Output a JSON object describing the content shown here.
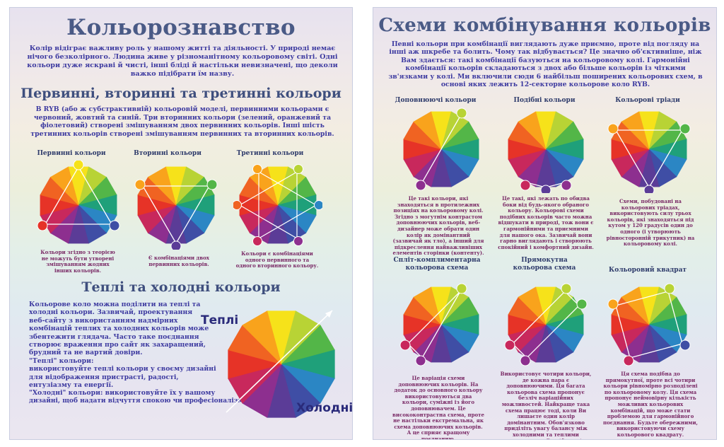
{
  "left": {
    "title": "Кольорознавство",
    "intro": "Колір відіграє важливу роль у нашому житті та діяльності. У природі немає нічого безколірного. Людина живе у різноманітному кольоровому світі. Одні кольори дуже яскраві й чисті, інші бліді й настільки невизначені, що деколи важко підібрати їм назву.",
    "section1_title": "Первинні, вторинні та третинні кольори",
    "section1_text": "В RYB (або ж субстрактивній) кольоровій моделі, первинними кольорами є червоний, жовтий та синій. Три вторинних кольори (зелений, оранжевий та фіолетовий) створені змішуванням двох первинних кольорів. Інші шість третинних кольорів створені змішуванням первинних та вторинних кольорів.",
    "wheels": [
      {
        "title": "Первинні кольори",
        "caption": "Кольори згідно з теорією не можуть бути утворені змішуванням жодних інших кольорів."
      },
      {
        "title": "Вторинні кольори",
        "caption": "Є комбінаціями двох первинних кольорів."
      },
      {
        "title": "Третинні кольори",
        "caption": "Кольори є комбінаціями одного первинного та одного вторинного кольору."
      }
    ],
    "section2_title": "Теплі та холодні кольори",
    "warm_label": "Теплі",
    "cold_label": "Холодні",
    "section2_lines": [
      "Кольорове коло можна поділити на теплі та",
      "холодні кольори. Зазвичай, проектування",
      "веб-сайту з використанням надмірних",
      "комбінацій теплих та холодних кольорів може",
      "збентежити глядача. Часто таке поєднання",
      "створює враження про сайт як захаращений,",
      "брудний та не вартий довіри.",
      "\"Теплі\" кольори:",
      "використовуйте теплі кольори у своєму дизайні",
      "для відображення пристрасті, радості,",
      "ентузіазму та енергії.",
      "\"Холодні\" кольори: використовуйте їх у вашому",
      "дизайні, щоб надати відчуття спокою чи професіоналізму."
    ]
  },
  "right": {
    "title": "Схеми комбінування кольорів",
    "intro": "Певні кольори при комбінації виглядають дуже приємно, проте від погляду на інші аж шкребе та болить. Чому так відбувається? Це значно об'єктивніше, ніж Вам здається: такі комбінації базуються на кольоровому колі. Гармонійні комбінації кольорів складаються з двох або більше кольорів із чіткими зв'язками у колі. Ми включили сюди 6 найбільш поширених кольорових схем, в основі яких лежить 12-секторне кольорове коло RYB.",
    "schemes": [
      {
        "title": "Доповнюючі кольори",
        "caption": "Це такі кольори, які знаходяться в протилежних позиціях на кольоровому колі. Згідно з могутнім контрастом доповнюючих кольорів, веб-дизайнер може обрати один колір як домінантний (зазвичай як тло), а інший для підкреслення найважливіших елементів сторінки (контенту)."
      },
      {
        "title": "Подібні кольори",
        "caption": "Це такі, які лежать по обидва боки від будь-якого обраного кольору. Кольорові схеми подібних кольорів часто можна відшукати в природі, тож вони є гармонійними та приємними для нашого ока. Зазвичай вони гарно виглядають і створюють спокійний і комфортний дизайн."
      },
      {
        "title": "Кольорові тріади",
        "caption": "Схеми, побудовані на кольорових тріадах, використовують силу трьох кольорів, які знаходяться під кутом у 120 градусів один до одного (і утворюють рівносторонній трикутник) на кольоровому колі."
      },
      {
        "title": "Спліт-комплиментарна кольорова схема",
        "caption": "Це варіація схеми доповнюючих кольорів. На додаток до основного кольору використовуються два кольори, суміжні із його доповнювачем. Це висококонтрастна схема, проте не настільки екстремальна, як схема доповнюючих кольорів. А це сприяє кращому поєднанню."
      },
      {
        "title": "Прямокутна кольорова схема",
        "caption": "Використовує чотири кольори, де кожна пара є доповнюючими. Ця багата кольорова схема пропонує безліч варіаційних можливостей. Найкраще така схема працює тоді, коли Ви лишаєте один колір домінантним. Обов'язково приділіть увагу балансу між холодними та теплими кольорами у Вашій схемі."
      },
      {
        "title": "Кольоровий квадрат",
        "caption": "Ця схема подібна до прямокутної, проте всі чотири кольори рівномірно розподілені по кольоровому колу. Ця схема пропонує неймовірну кількість можливих кольорових комбінацій, що може стати проблемою для гармонійного поєднання. Будьте обережними, використовуючи схему кольорового квадрату."
      }
    ]
  },
  "colors": {
    "ryb": [
      "#f6e21a",
      "#b8d335",
      "#53b648",
      "#1fa07a",
      "#2b86c4",
      "#3f4ea5",
      "#5b3c97",
      "#8d2f8f",
      "#c8285c",
      "#e63327",
      "#f06322",
      "#f9a31c"
    ],
    "heading": "#4a5a86",
    "body_text": "#3d3aa0",
    "caption": "#7a2a66"
  }
}
